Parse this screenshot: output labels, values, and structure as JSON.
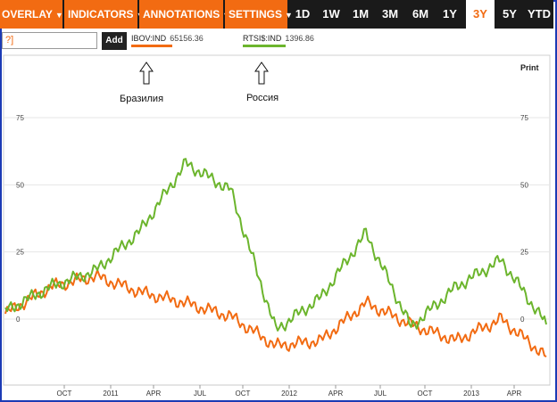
{
  "toolbar": {
    "menus": [
      {
        "label": "OVERLAY"
      },
      {
        "label": "INDICATORS"
      },
      {
        "label": "ANNOTATIONS"
      },
      {
        "label": "SETTINGS"
      }
    ],
    "periods": [
      "1D",
      "1W",
      "1M",
      "3M",
      "6M",
      "1Y",
      "3Y",
      "5Y",
      "YTD"
    ],
    "active_period": "3Y"
  },
  "symbol_input": {
    "value": "?]"
  },
  "add_button": {
    "label": "Add"
  },
  "legend": [
    {
      "symbol": "IBOV:IND",
      "value": "65156.36",
      "color": "#f26b12"
    },
    {
      "symbol": "RTSI$:IND",
      "value": "1396.86",
      "color": "#6cb52d"
    }
  ],
  "annotations": {
    "left": "Бразилия",
    "right": "Россия"
  },
  "print_label": "Print",
  "colors": {
    "accent": "#f26b12",
    "toolbar_bg": "#1a1a1a",
    "frame": "#1c3bb5",
    "grid": "#e6e6e6"
  },
  "chart_data": {
    "type": "line",
    "ylim": [
      -20,
      90
    ],
    "y_ticks": [
      "75",
      "50",
      "25",
      "0"
    ],
    "x_ticks": [
      "OCT",
      "2011",
      "APR",
      "JUL",
      "OCT",
      "2012",
      "APR",
      "JUL",
      "OCT",
      "2013",
      "APR"
    ],
    "series": [
      {
        "name": "IBOV:IND",
        "color": "#f26b12",
        "x": [
          0,
          3,
          6,
          9,
          12,
          15,
          18,
          21,
          24,
          27,
          30,
          33,
          36
        ],
        "values": [
          2,
          12,
          16,
          10,
          6,
          1,
          -10,
          -8,
          6,
          -2,
          -8,
          0,
          -14
        ]
      },
      {
        "name": "RTSI$:IND",
        "color": "#6cb52d",
        "x": [
          0,
          3,
          6,
          9,
          12,
          15,
          18,
          21,
          24,
          27,
          30,
          33,
          36
        ],
        "values": [
          3,
          12,
          18,
          33,
          58,
          48,
          -4,
          8,
          32,
          -3,
          12,
          22,
          -2
        ]
      }
    ]
  }
}
